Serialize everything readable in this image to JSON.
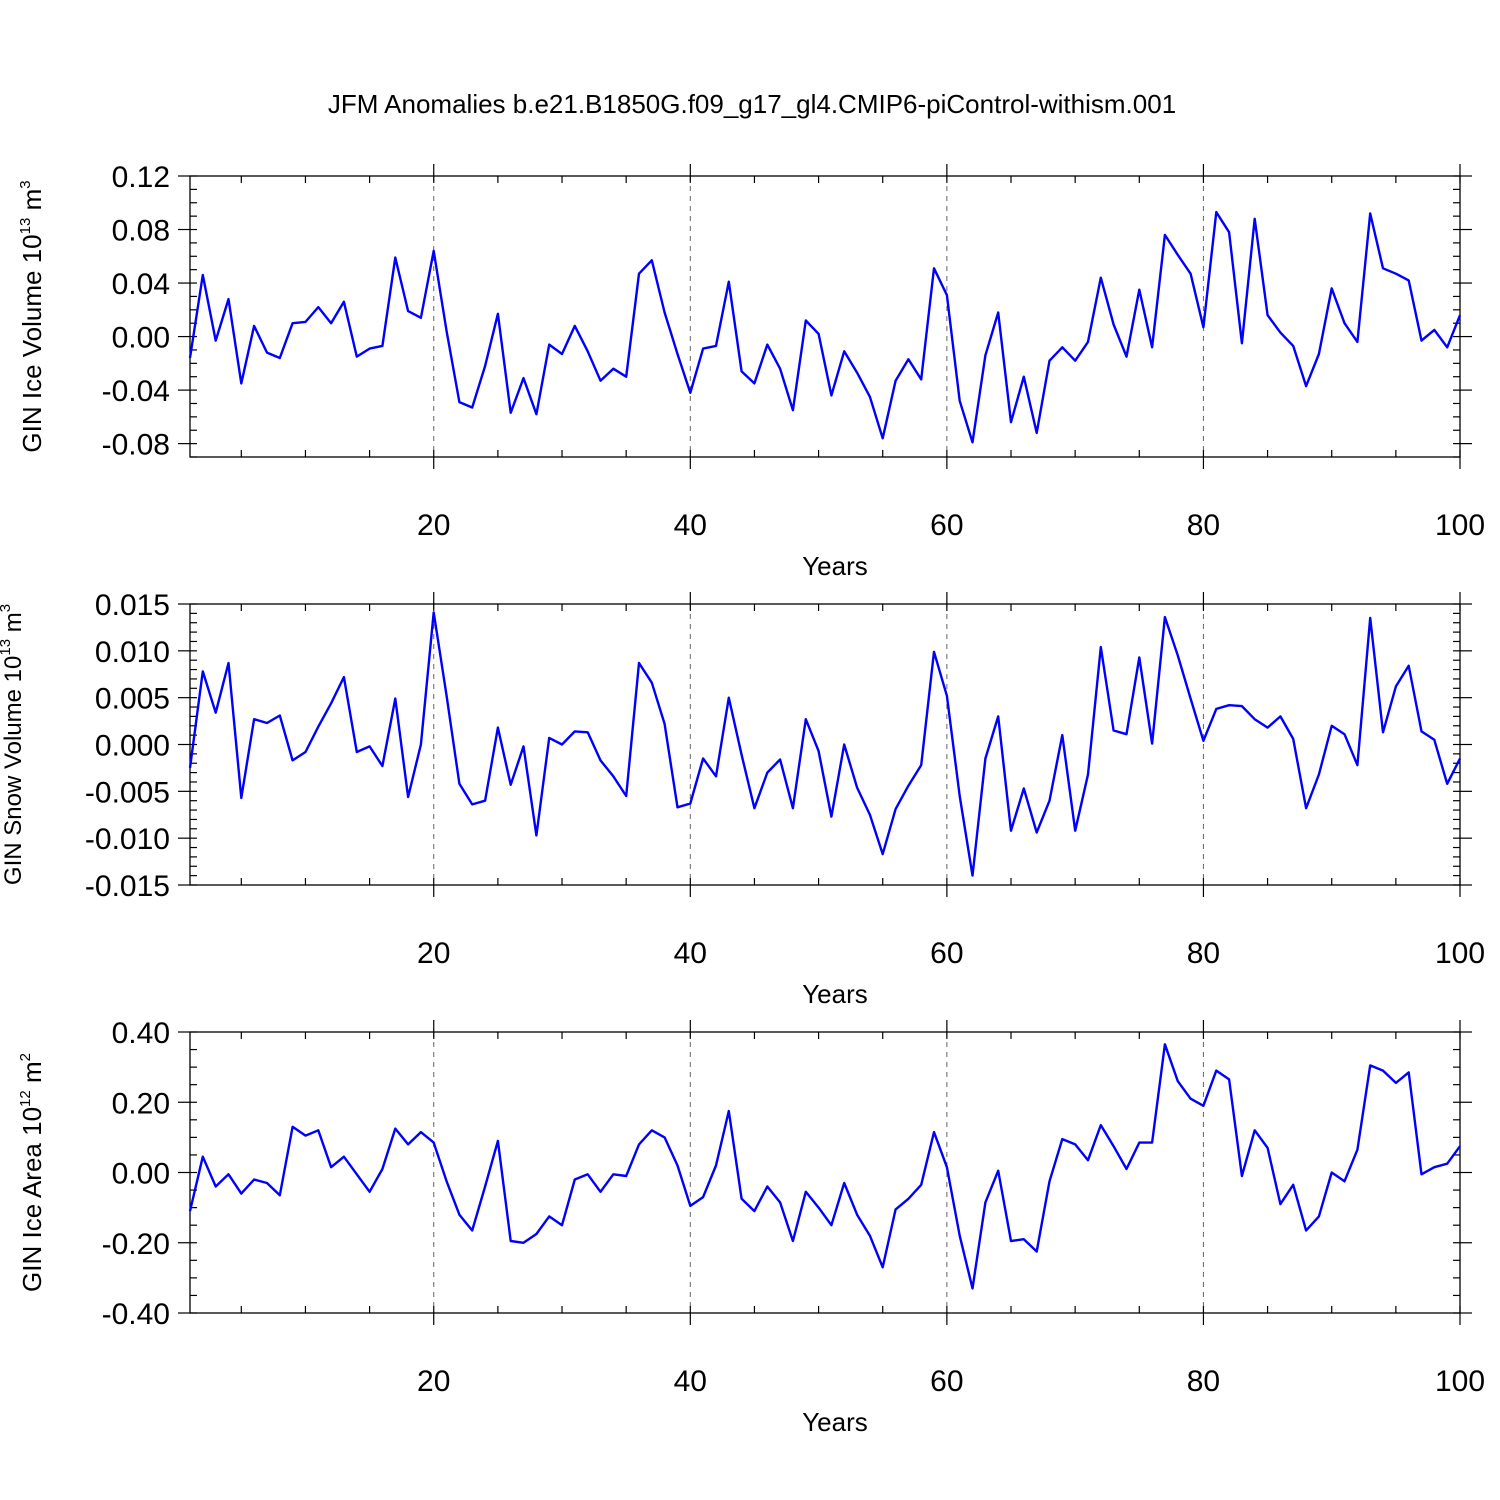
{
  "chart_data": {
    "type": "line",
    "title": "JFM Anomalies b.e21.B1850G.f09_g17_gl4.CMIP6-piControl-withism.001",
    "panels": [
      {
        "id": "ice-volume",
        "ylabel": {
          "main": "GIN Ice Volume 10",
          "exp": "13",
          "unit": " m",
          "unit_exp": "3"
        },
        "xlabel": "Years",
        "xlim": [
          1,
          100
        ],
        "xticks": [
          20,
          40,
          60,
          80,
          100
        ],
        "xtick_labels": [
          "20",
          "40",
          "60",
          "80",
          "100"
        ],
        "ylim": [
          -0.09,
          0.12
        ],
        "yticks": [
          -0.08,
          -0.04,
          0.0,
          0.04,
          0.08,
          0.12
        ],
        "ytick_labels": [
          "-0.08",
          "-0.04",
          "0.00",
          "0.04",
          "0.08",
          "0.12"
        ],
        "y_minor_step": 0.01,
        "grid_x": [
          20,
          40,
          60,
          80
        ],
        "x": [
          1,
          2,
          3,
          4,
          5,
          6,
          7,
          8,
          9,
          10,
          11,
          12,
          13,
          14,
          15,
          16,
          17,
          18,
          19,
          20,
          21,
          22,
          23,
          24,
          25,
          26,
          27,
          28,
          29,
          30,
          31,
          32,
          33,
          34,
          35,
          36,
          37,
          38,
          39,
          40,
          41,
          42,
          43,
          44,
          45,
          46,
          47,
          48,
          49,
          50,
          51,
          52,
          53,
          54,
          55,
          56,
          57,
          58,
          59,
          60,
          61,
          62,
          63,
          64,
          65,
          66,
          67,
          68,
          69,
          70,
          71,
          72,
          73,
          74,
          75,
          76,
          77,
          78,
          79,
          80,
          81,
          82,
          83,
          84,
          85,
          86,
          87,
          88,
          89,
          90,
          91,
          92,
          93,
          94,
          95,
          96,
          97,
          98,
          99,
          100
        ],
        "values": [
          -0.016,
          0.046,
          -0.003,
          0.028,
          -0.035,
          0.008,
          -0.012,
          -0.016,
          0.01,
          0.011,
          0.022,
          0.01,
          0.026,
          -0.015,
          -0.009,
          -0.007,
          0.059,
          0.019,
          0.014,
          0.064,
          0.004,
          -0.049,
          -0.053,
          -0.022,
          0.017,
          -0.057,
          -0.031,
          -0.058,
          -0.006,
          -0.013,
          0.008,
          -0.011,
          -0.033,
          -0.024,
          -0.03,
          0.047,
          0.057,
          0.018,
          -0.013,
          -0.042,
          -0.009,
          -0.007,
          0.041,
          -0.026,
          -0.035,
          -0.006,
          -0.024,
          -0.055,
          0.012,
          0.002,
          -0.044,
          -0.011,
          -0.027,
          -0.045,
          -0.076,
          -0.033,
          -0.017,
          -0.032,
          0.051,
          0.031,
          -0.048,
          -0.079,
          -0.014,
          0.018,
          -0.064,
          -0.03,
          -0.072,
          -0.018,
          -0.008,
          -0.018,
          -0.004,
          0.044,
          0.009,
          -0.015,
          0.035,
          -0.008,
          0.076,
          0.061,
          0.047,
          0.007,
          0.093,
          0.078,
          -0.005,
          0.088,
          0.016,
          0.003,
          -0.007,
          -0.037,
          -0.013,
          0.036,
          0.01,
          -0.004,
          0.092,
          0.051,
          0.047,
          0.042,
          -0.003,
          0.005,
          -0.008,
          0.016
        ]
      },
      {
        "id": "snow-volume",
        "ylabel": {
          "main": "GIN Snow Volume 10",
          "exp": "13",
          "unit": " m",
          "unit_exp": "3"
        },
        "xlabel": "Years",
        "xlim": [
          1,
          100
        ],
        "xticks": [
          20,
          40,
          60,
          80,
          100
        ],
        "xtick_labels": [
          "20",
          "40",
          "60",
          "80",
          "100"
        ],
        "ylim": [
          -0.015,
          0.015
        ],
        "yticks": [
          -0.015,
          -0.01,
          -0.005,
          0.0,
          0.005,
          0.01,
          0.015
        ],
        "ytick_labels": [
          "-0.015",
          "-0.010",
          "-0.005",
          "0.000",
          "0.005",
          "0.010",
          "0.015"
        ],
        "y_minor_step": 0.001,
        "grid_x": [
          20,
          40,
          60,
          80
        ],
        "x": [
          1,
          2,
          3,
          4,
          5,
          6,
          7,
          8,
          9,
          10,
          11,
          12,
          13,
          14,
          15,
          16,
          17,
          18,
          19,
          20,
          21,
          22,
          23,
          24,
          25,
          26,
          27,
          28,
          29,
          30,
          31,
          32,
          33,
          34,
          35,
          36,
          37,
          38,
          39,
          40,
          41,
          42,
          43,
          44,
          45,
          46,
          47,
          48,
          49,
          50,
          51,
          52,
          53,
          54,
          55,
          56,
          57,
          58,
          59,
          60,
          61,
          62,
          63,
          64,
          65,
          66,
          67,
          68,
          69,
          70,
          71,
          72,
          73,
          74,
          75,
          76,
          77,
          78,
          79,
          80,
          81,
          82,
          83,
          84,
          85,
          86,
          87,
          88,
          89,
          90,
          91,
          92,
          93,
          94,
          95,
          96,
          97,
          98,
          99,
          100
        ],
        "values": [
          -0.0025,
          0.0078,
          0.0034,
          0.0087,
          -0.0057,
          0.0027,
          0.0023,
          0.0031,
          -0.0017,
          -0.0008,
          0.0019,
          0.0044,
          0.0072,
          -0.0008,
          -0.0002,
          -0.0023,
          0.0049,
          -0.0056,
          0.0,
          0.0141,
          0.0052,
          -0.0042,
          -0.0064,
          -0.006,
          0.0018,
          -0.0043,
          -0.0002,
          -0.0097,
          0.0007,
          0.0,
          0.0014,
          0.0013,
          -0.0017,
          -0.0034,
          -0.0055,
          0.0087,
          0.0066,
          0.0022,
          -0.0067,
          -0.0063,
          -0.0015,
          -0.0034,
          0.005,
          -0.0011,
          -0.0068,
          -0.003,
          -0.0016,
          -0.0068,
          0.0027,
          -0.0007,
          -0.0077,
          0.0,
          -0.0046,
          -0.0075,
          -0.0117,
          -0.0069,
          -0.0044,
          -0.0022,
          0.0099,
          0.0052,
          -0.0055,
          -0.014,
          -0.0015,
          0.003,
          -0.0092,
          -0.0047,
          -0.0094,
          -0.006,
          0.001,
          -0.0092,
          -0.0032,
          0.0104,
          0.0015,
          0.0011,
          0.0093,
          0.0001,
          0.0136,
          0.0095,
          0.0049,
          0.0004,
          0.0038,
          0.0042,
          0.0041,
          0.0027,
          0.0018,
          0.003,
          0.0006,
          -0.0068,
          -0.0032,
          0.002,
          0.0011,
          -0.0022,
          0.0135,
          0.0013,
          0.0062,
          0.0084,
          0.0014,
          0.0005,
          -0.0042,
          -0.0015
        ]
      },
      {
        "id": "ice-area",
        "ylabel": {
          "main": "GIN Ice Area 10",
          "exp": "12",
          "unit": " m",
          "unit_exp": "2"
        },
        "xlabel": "Years",
        "xlim": [
          1,
          100
        ],
        "xticks": [
          20,
          40,
          60,
          80,
          100
        ],
        "xtick_labels": [
          "20",
          "40",
          "60",
          "80",
          "100"
        ],
        "ylim": [
          -0.4,
          0.4
        ],
        "yticks": [
          -0.4,
          -0.2,
          0.0,
          0.2,
          0.4
        ],
        "ytick_labels": [
          "-0.40",
          "-0.20",
          "0.00",
          "0.20",
          "0.40"
        ],
        "y_minor_step": 0.05,
        "grid_x": [
          20,
          40,
          60,
          80
        ],
        "x": [
          1,
          2,
          3,
          4,
          5,
          6,
          7,
          8,
          9,
          10,
          11,
          12,
          13,
          14,
          15,
          16,
          17,
          18,
          19,
          20,
          21,
          22,
          23,
          24,
          25,
          26,
          27,
          28,
          29,
          30,
          31,
          32,
          33,
          34,
          35,
          36,
          37,
          38,
          39,
          40,
          41,
          42,
          43,
          44,
          45,
          46,
          47,
          48,
          49,
          50,
          51,
          52,
          53,
          54,
          55,
          56,
          57,
          58,
          59,
          60,
          61,
          62,
          63,
          64,
          65,
          66,
          67,
          68,
          69,
          70,
          71,
          72,
          73,
          74,
          75,
          76,
          77,
          78,
          79,
          80,
          81,
          82,
          83,
          84,
          85,
          86,
          87,
          88,
          89,
          90,
          91,
          92,
          93,
          94,
          95,
          96,
          97,
          98,
          99,
          100
        ],
        "values": [
          -0.11,
          0.045,
          -0.04,
          -0.005,
          -0.06,
          -0.02,
          -0.03,
          -0.065,
          0.13,
          0.105,
          0.12,
          0.015,
          0.045,
          -0.005,
          -0.055,
          0.01,
          0.125,
          0.08,
          0.115,
          0.085,
          -0.025,
          -0.12,
          -0.165,
          -0.04,
          0.09,
          -0.195,
          -0.2,
          -0.175,
          -0.125,
          -0.15,
          -0.02,
          -0.005,
          -0.055,
          -0.005,
          -0.01,
          0.08,
          0.12,
          0.1,
          0.02,
          -0.095,
          -0.07,
          0.02,
          0.175,
          -0.075,
          -0.11,
          -0.04,
          -0.085,
          -0.195,
          -0.055,
          -0.1,
          -0.15,
          -0.03,
          -0.12,
          -0.18,
          -0.27,
          -0.105,
          -0.075,
          -0.035,
          0.115,
          0.015,
          -0.18,
          -0.33,
          -0.085,
          0.005,
          -0.195,
          -0.19,
          -0.225,
          -0.025,
          0.095,
          0.08,
          0.035,
          0.135,
          0.075,
          0.01,
          0.085,
          0.085,
          0.365,
          0.26,
          0.21,
          0.19,
          0.29,
          0.265,
          -0.01,
          0.12,
          0.07,
          -0.09,
          -0.035,
          -0.165,
          -0.125,
          0.0,
          -0.025,
          0.065,
          0.305,
          0.29,
          0.255,
          0.285,
          -0.005,
          0.015,
          0.025,
          0.075
        ]
      }
    ]
  }
}
